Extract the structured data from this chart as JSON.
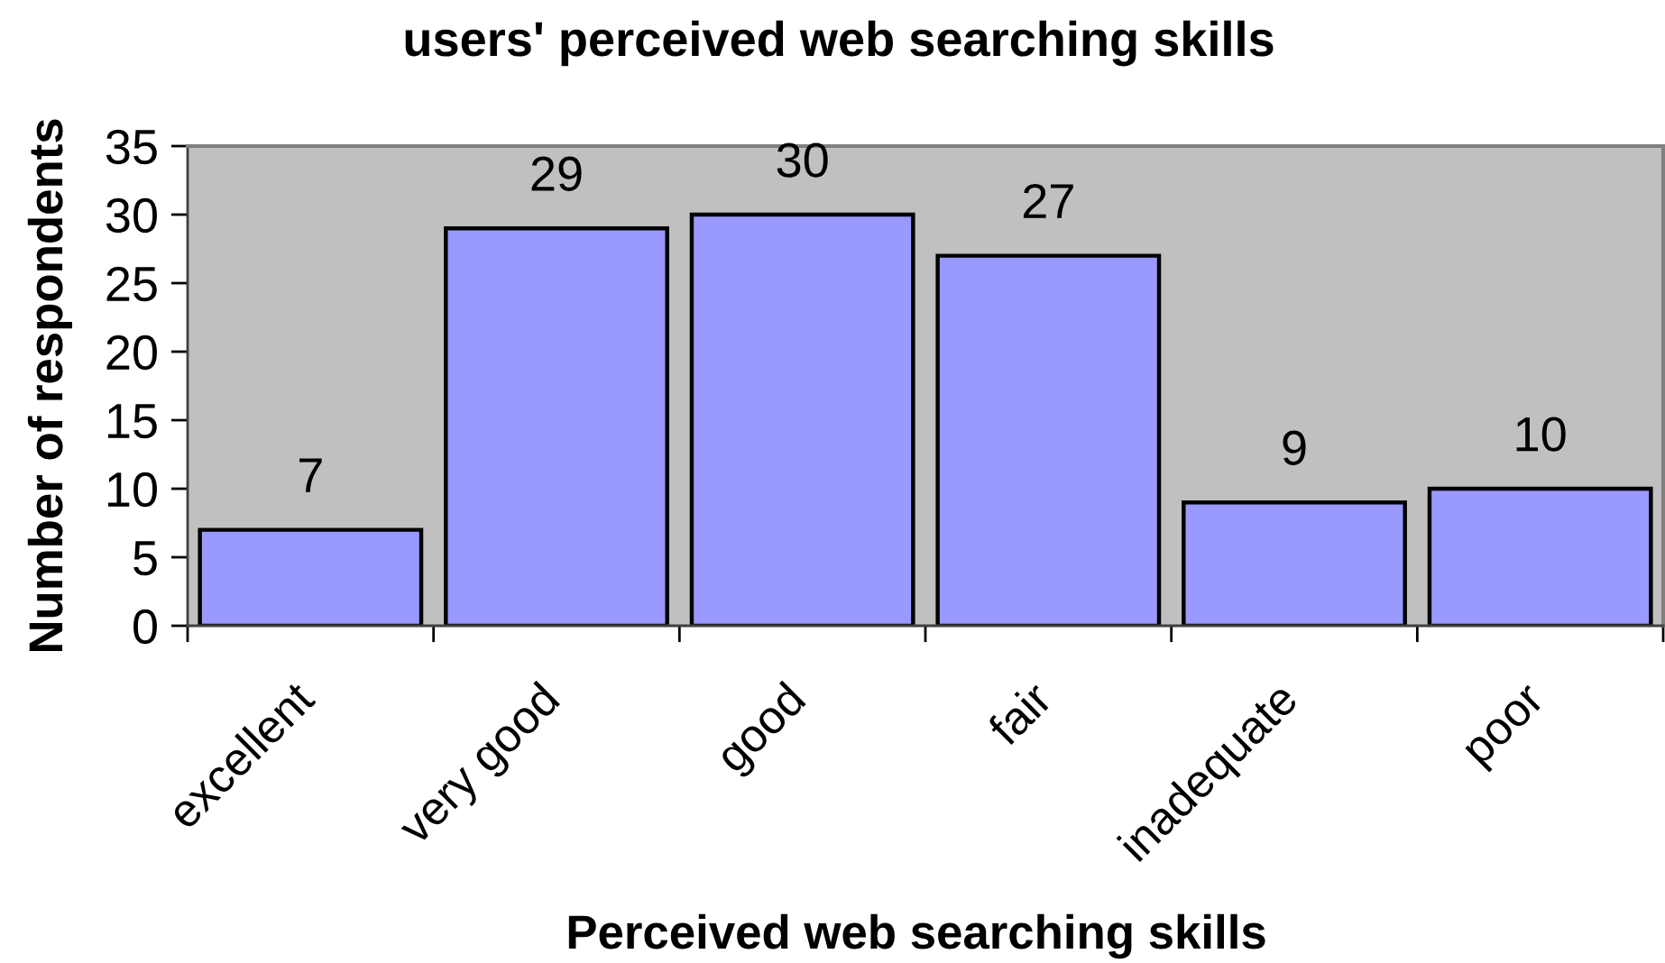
{
  "chart_data": {
    "type": "bar",
    "title": "users' perceived web searching skills",
    "xlabel": "Perceived web searching skills",
    "ylabel": "Number of respondents",
    "categories": [
      "excellent",
      "very good",
      "good",
      "fair",
      "inadequate",
      "poor"
    ],
    "values": [
      7,
      29,
      30,
      27,
      9,
      10
    ],
    "color": "#9999ff",
    "ylim": [
      0,
      35
    ],
    "yticks": [
      0,
      5,
      10,
      15,
      20,
      25,
      30,
      35
    ],
    "data_labels": true
  }
}
